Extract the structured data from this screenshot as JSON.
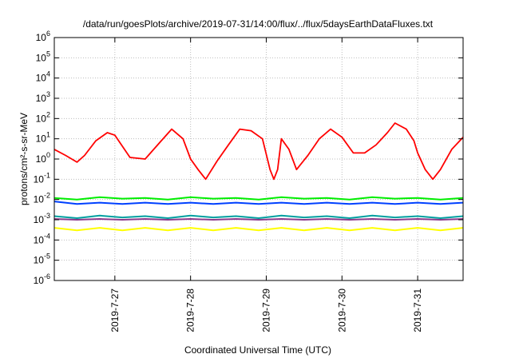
{
  "chart_data": {
    "type": "line",
    "title": "/data/run/goesPlots/archive/2019-07-31/14:00/flux/../flux/5daysEarthDataFluxes.txt",
    "xlabel": "Coordinated Universal Time (UTC)",
    "ylabel": "protons/cm²-s-sr-MeV",
    "yscale": "log",
    "ylim": [
      1e-06,
      1000000.0
    ],
    "xlim_days": [
      26.2,
      31.6
    ],
    "x_ticks": [
      {
        "label": "2019-7-27",
        "day": 27
      },
      {
        "label": "2019-7-28",
        "day": 28
      },
      {
        "label": "2019-7-29",
        "day": 29
      },
      {
        "label": "2019-7-30",
        "day": 30
      },
      {
        "label": "2019-7-31",
        "day": 31
      }
    ],
    "y_ticks": [
      {
        "base": "10",
        "exp": "-6",
        "value": 1e-06
      },
      {
        "base": "10",
        "exp": "-5",
        "value": 1e-05
      },
      {
        "base": "10",
        "exp": "-4",
        "value": 0.0001
      },
      {
        "base": "10",
        "exp": "-3",
        "value": 0.001
      },
      {
        "base": "10",
        "exp": "-2",
        "value": 0.01
      },
      {
        "base": "10",
        "exp": "-1",
        "value": 0.1
      },
      {
        "base": "10",
        "exp": "0",
        "value": 1
      },
      {
        "base": "10",
        "exp": "1",
        "value": 10
      },
      {
        "base": "10",
        "exp": "2",
        "value": 100
      },
      {
        "base": "10",
        "exp": "3",
        "value": 1000
      },
      {
        "base": "10",
        "exp": "4",
        "value": 10000
      },
      {
        "base": "10",
        "exp": "5",
        "value": 100000
      },
      {
        "base": "10",
        "exp": "6",
        "value": 1000000
      }
    ],
    "grid": true,
    "series": [
      {
        "color": "#ffff00",
        "x": [
          26.2,
          26.5,
          26.8,
          27.1,
          27.4,
          27.7,
          28.0,
          28.3,
          28.6,
          28.9,
          29.2,
          29.5,
          29.8,
          30.1,
          30.4,
          30.7,
          31.0,
          31.3,
          31.6
        ],
        "y": [
          0.0004,
          0.0003,
          0.0004,
          0.0003,
          0.0004,
          0.0003,
          0.0004,
          0.0003,
          0.0004,
          0.0003,
          0.0004,
          0.0003,
          0.0004,
          0.0003,
          0.0004,
          0.0003,
          0.0004,
          0.0003,
          0.0004
        ]
      },
      {
        "color": "#00a0a0",
        "x": [
          26.2,
          26.5,
          26.8,
          27.1,
          27.4,
          27.7,
          28.0,
          28.3,
          28.6,
          28.9,
          29.2,
          29.5,
          29.8,
          30.1,
          30.4,
          30.7,
          31.0,
          31.3,
          31.6
        ],
        "y": [
          0.0015,
          0.0012,
          0.0016,
          0.0013,
          0.0015,
          0.0012,
          0.0016,
          0.0013,
          0.0015,
          0.0012,
          0.0016,
          0.0013,
          0.0015,
          0.0012,
          0.0016,
          0.0013,
          0.0015,
          0.0012,
          0.0015
        ]
      },
      {
        "color": "#8b3a8b",
        "x": [
          26.2,
          26.5,
          26.8,
          27.1,
          27.4,
          27.7,
          28.0,
          28.3,
          28.6,
          28.9,
          29.2,
          29.5,
          29.8,
          30.1,
          30.4,
          30.7,
          31.0,
          31.3,
          31.6
        ],
        "y": [
          0.0011,
          0.001,
          0.0011,
          0.001,
          0.0011,
          0.001,
          0.0011,
          0.001,
          0.0011,
          0.001,
          0.0011,
          0.001,
          0.0011,
          0.001,
          0.0011,
          0.001,
          0.0011,
          0.001,
          0.0011
        ]
      },
      {
        "color": "#00ee00",
        "x": [
          26.2,
          26.5,
          26.8,
          27.1,
          27.4,
          27.7,
          28.0,
          28.3,
          28.6,
          28.9,
          29.2,
          29.5,
          29.8,
          30.1,
          30.4,
          30.7,
          31.0,
          31.3,
          31.6
        ],
        "y": [
          0.012,
          0.01,
          0.013,
          0.011,
          0.012,
          0.01,
          0.013,
          0.011,
          0.012,
          0.01,
          0.013,
          0.011,
          0.012,
          0.01,
          0.013,
          0.011,
          0.012,
          0.01,
          0.012
        ]
      },
      {
        "color": "#0040ff",
        "x": [
          26.2,
          26.5,
          26.8,
          27.1,
          27.4,
          27.7,
          28.0,
          28.3,
          28.6,
          28.9,
          29.2,
          29.5,
          29.8,
          30.1,
          30.4,
          30.7,
          31.0,
          31.3,
          31.6
        ],
        "y": [
          0.008,
          0.006,
          0.007,
          0.006,
          0.007,
          0.006,
          0.007,
          0.006,
          0.007,
          0.006,
          0.007,
          0.006,
          0.007,
          0.006,
          0.007,
          0.006,
          0.007,
          0.006,
          0.007
        ]
      },
      {
        "color": "#ff0000",
        "x": [
          26.2,
          26.35,
          26.5,
          26.6,
          26.75,
          26.9,
          27.0,
          27.2,
          27.4,
          27.6,
          27.75,
          27.9,
          28.0,
          28.1,
          28.2,
          28.35,
          28.5,
          28.65,
          28.8,
          28.95,
          29.05,
          29.1,
          29.15,
          29.2,
          29.3,
          29.4,
          29.55,
          29.7,
          29.85,
          30.0,
          30.15,
          30.3,
          30.45,
          30.6,
          30.7,
          30.85,
          30.95,
          31.0,
          31.1,
          31.2,
          31.3,
          31.45,
          31.6
        ],
        "y": [
          3,
          1.5,
          0.7,
          1.5,
          8,
          20,
          15,
          1.2,
          1.0,
          7,
          30,
          10,
          1.0,
          0.3,
          0.1,
          0.8,
          5,
          30,
          25,
          10,
          0.3,
          0.1,
          0.3,
          10,
          3,
          0.3,
          1.5,
          10,
          30,
          12,
          2,
          2,
          5,
          20,
          60,
          30,
          8,
          2,
          0.3,
          0.1,
          0.3,
          3,
          12
        ]
      }
    ]
  }
}
